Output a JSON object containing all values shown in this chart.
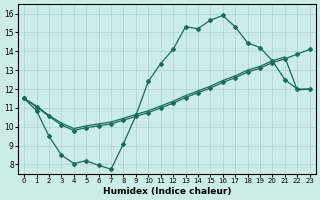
{
  "xlabel": "Humidex (Indice chaleur)",
  "xlim": [
    -0.5,
    23.5
  ],
  "ylim": [
    7.5,
    16.5
  ],
  "yticks": [
    8,
    9,
    10,
    11,
    12,
    13,
    14,
    15,
    16
  ],
  "xticks": [
    0,
    1,
    2,
    3,
    4,
    5,
    6,
    7,
    8,
    9,
    10,
    11,
    12,
    13,
    14,
    15,
    16,
    17,
    18,
    19,
    20,
    21,
    22,
    23
  ],
  "bg_color": "#ccecea",
  "grid_color": "#aad4d0",
  "line_color": "#1a6b5a",
  "curve_top_x": [
    0,
    1,
    2,
    3,
    4,
    5,
    6,
    7,
    8,
    9,
    10,
    11,
    12,
    13,
    14,
    15,
    16,
    17,
    18,
    19,
    20,
    21,
    22,
    23
  ],
  "curve_top_y": [
    11.5,
    10.85,
    9.5,
    8.5,
    8.05,
    8.2,
    7.95,
    7.75,
    9.1,
    10.6,
    12.4,
    13.35,
    14.1,
    15.3,
    15.2,
    15.65,
    15.9,
    15.3,
    14.45,
    14.2,
    13.5,
    12.5,
    12.0,
    12.0
  ],
  "curve_diag1_x": [
    0,
    1,
    2,
    3,
    4,
    5,
    6,
    7,
    8,
    9,
    10,
    11,
    12,
    13,
    14,
    15,
    16,
    17,
    18,
    19,
    20,
    21,
    22,
    23
  ],
  "curve_diag1_y": [
    11.5,
    11.05,
    10.55,
    10.1,
    9.8,
    9.95,
    10.05,
    10.15,
    10.35,
    10.55,
    10.75,
    11.0,
    11.25,
    11.55,
    11.8,
    12.05,
    12.35,
    12.6,
    12.9,
    13.1,
    13.4,
    13.6,
    13.85,
    14.1
  ],
  "curve_diag2_x": [
    0,
    1,
    2,
    3,
    4,
    5,
    6,
    7,
    8,
    9,
    10,
    11,
    12,
    13,
    14,
    15,
    16,
    17,
    18,
    19,
    20,
    21,
    22,
    23
  ],
  "curve_diag2_y": [
    11.5,
    11.1,
    10.6,
    10.2,
    9.9,
    10.05,
    10.15,
    10.25,
    10.45,
    10.65,
    10.85,
    11.1,
    11.35,
    11.65,
    11.9,
    12.15,
    12.45,
    12.7,
    13.0,
    13.2,
    13.5,
    13.7,
    11.95,
    12.0
  ]
}
